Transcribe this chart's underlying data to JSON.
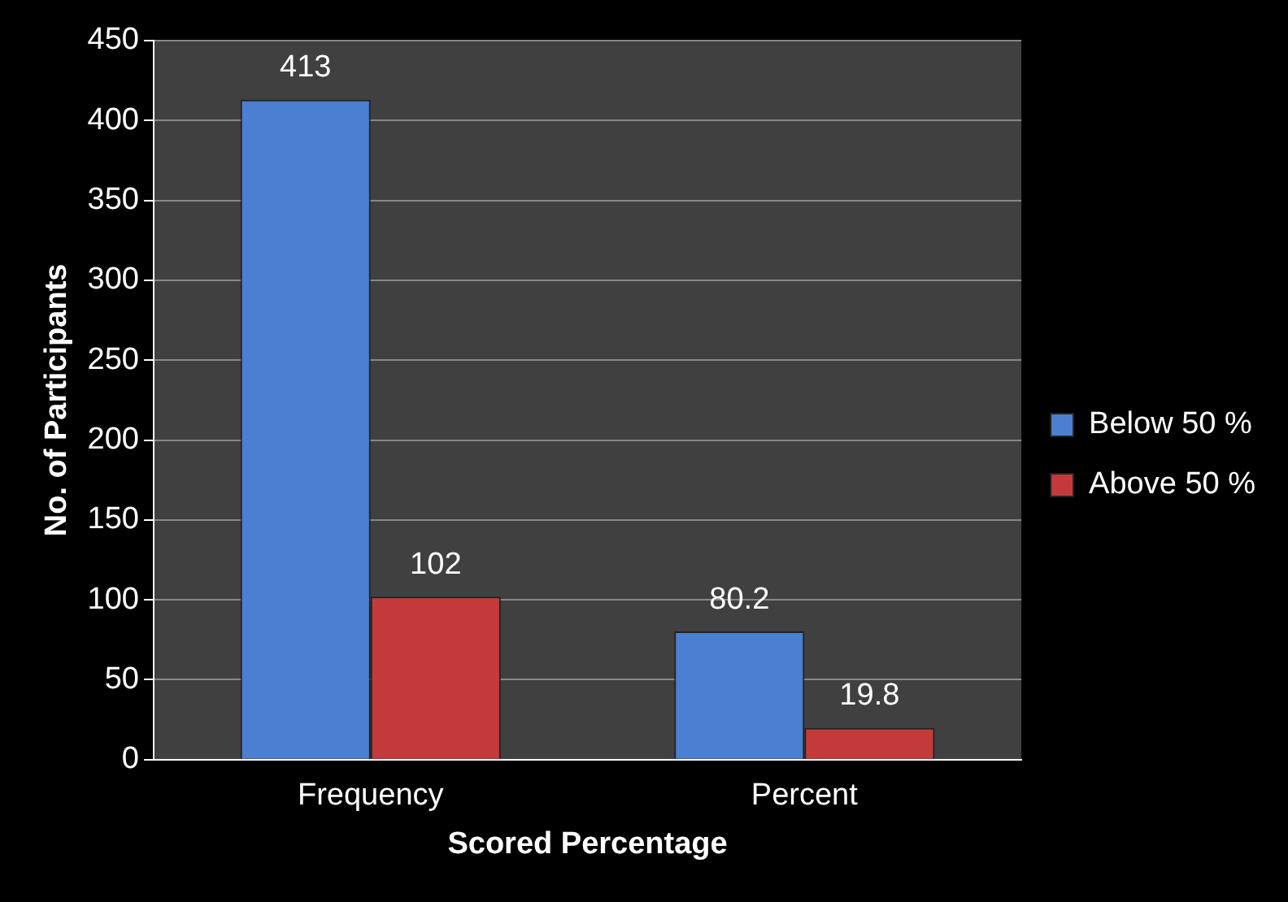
{
  "chart_data": {
    "type": "bar",
    "xlabel": "Scored Percentage",
    "ylabel": "No. of Participants",
    "categories": [
      "Frequency",
      "Percent"
    ],
    "series": [
      {
        "name": "Below 50 %",
        "color": "#4a7fd2",
        "values": [
          413,
          80.2
        ]
      },
      {
        "name": "Above 50 %",
        "color": "#c43a3a",
        "values": [
          102,
          19.8
        ]
      }
    ],
    "ylim": [
      0,
      450
    ],
    "yticks": [
      0,
      50,
      100,
      150,
      200,
      250,
      300,
      350,
      400,
      450
    ],
    "grid": "y",
    "legend": "right",
    "data_labels": true
  }
}
